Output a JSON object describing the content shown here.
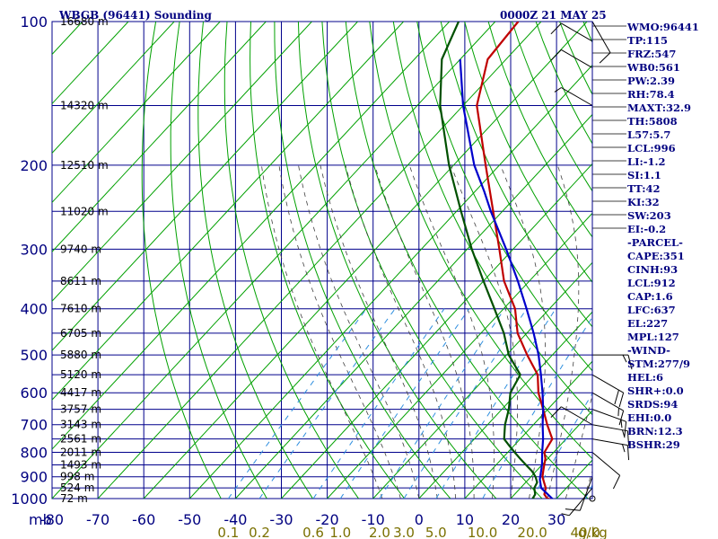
{
  "station_title": "WBGB (96441) Sounding",
  "time_title": "0000Z 21 MAY 25",
  "pressure_unit": "mb",
  "mixing_unit": "g/kg",
  "colors": {
    "grid": "#00008b",
    "dry_adiabat": "#00a000",
    "moist_adiabat": "#404040",
    "mixing_ratio": "#2f8fdf",
    "temperature": "#c00000",
    "dewpoint": "#005000",
    "parcel": "#0000cc"
  },
  "indices": [
    "WMO:96441",
    "TP:115",
    "FRZ:547",
    "WB0:561",
    "PW:2.39",
    "RH:78.4",
    "MAXT:32.9",
    "TH:5808",
    "L57:5.7",
    "LCL:996",
    "LI:-1.2",
    "SI:1.1",
    "TT:42",
    "KI:32",
    "SW:203",
    "EI:-0.2",
    "-PARCEL-",
    "CAPE:351",
    "CINH:93",
    "LCL:912",
    "CAP:1.6",
    "LFC:637",
    "EL:227",
    "MPL:127",
    "-WIND-",
    "STM:277/9",
    "HEL:6",
    "SHR+:0.0",
    "SRDS:94",
    "EHI:0.0",
    "BRN:12.3",
    "BSHR:29"
  ],
  "chart_data": {
    "type": "skew-t log-p",
    "title": "WBGB (96441) Sounding",
    "valid_time": "0000Z 21 MAY 25",
    "xlabel": "°C",
    "ylabel": "mb",
    "ylim": [
      1000,
      100
    ],
    "xlim": [
      -80,
      30
    ],
    "grid": true,
    "pressure_ticks": [
      100,
      200,
      300,
      400,
      500,
      600,
      700,
      800,
      900,
      1000
    ],
    "temperature_ticks": [
      -80,
      -70,
      -60,
      -50,
      -40,
      -30,
      -20,
      -10,
      0,
      10,
      20,
      30
    ],
    "mixing_ratio_ticks": [
      "0.1",
      "0.2",
      "0.6",
      "1.0",
      "2.0",
      "3.0",
      "5.0",
      "10.0",
      "20.0",
      "40.0"
    ],
    "mixing_ratio_values": [
      0.1,
      0.2,
      0.6,
      1.0,
      2.0,
      3.0,
      5.0,
      10.0,
      20.0,
      40.0
    ],
    "height_labels": [
      {
        "p": 100,
        "label": "16680 m"
      },
      {
        "p": 150,
        "label": "14320 m"
      },
      {
        "p": 200,
        "label": "12510 m"
      },
      {
        "p": 250,
        "label": "11020 m"
      },
      {
        "p": 300,
        "label": "9740 m"
      },
      {
        "p": 350,
        "label": "8611 m"
      },
      {
        "p": 400,
        "label": "7610 m"
      },
      {
        "p": 450,
        "label": "6705 m"
      },
      {
        "p": 500,
        "label": "5880 m"
      },
      {
        "p": 550,
        "label": "5120 m"
      },
      {
        "p": 600,
        "label": "4417 m"
      },
      {
        "p": 650,
        "label": "3757 m"
      },
      {
        "p": 700,
        "label": "3143 m"
      },
      {
        "p": 750,
        "label": "2561 m"
      },
      {
        "p": 800,
        "label": "2011 m"
      },
      {
        "p": 850,
        "label": "1493 m"
      },
      {
        "p": 900,
        "label": "998 m"
      },
      {
        "p": 950,
        "label": "524 m"
      },
      {
        "p": 1000,
        "label": "72 m"
      }
    ],
    "series": [
      {
        "key": "temperature",
        "p": [
          1005,
          1000,
          980,
          950,
          925,
          900,
          875,
          850,
          825,
          800,
          775,
          750,
          700,
          650,
          600,
          550,
          500,
          450,
          400,
          350,
          300,
          250,
          200,
          150,
          120,
          100
        ],
        "t": [
          29.4,
          28.0,
          26.5,
          25.5,
          24.0,
          22.5,
          21.5,
          20.5,
          19.5,
          18.0,
          17.5,
          17.0,
          13.0,
          9.0,
          4.6,
          0.8,
          -5.5,
          -12.0,
          -17.5,
          -25.5,
          -33.0,
          -42.0,
          -53.0,
          -67.0,
          -74.0,
          -75.0
        ]
      },
      {
        "key": "dewpoint",
        "p": [
          1005,
          1000,
          980,
          950,
          925,
          900,
          875,
          850,
          825,
          800,
          775,
          750,
          700,
          650,
          600,
          550,
          500,
          450,
          400,
          350,
          300,
          250,
          200,
          150,
          120,
          100
        ],
        "t": [
          26.0,
          24.8,
          24.5,
          23.0,
          22.5,
          21.0,
          19.0,
          16.5,
          14.0,
          11.5,
          9.0,
          6.5,
          3.8,
          1.5,
          -1.5,
          -3.0,
          -9.5,
          -15.0,
          -22.0,
          -30.0,
          -39.0,
          -49.0,
          -61.0,
          -75.0,
          -84.0,
          -88.0
        ]
      },
      {
        "key": "parcel",
        "p": [
          1005,
          950,
          912,
          850,
          800,
          750,
          700,
          650,
          600,
          550,
          500,
          450,
          400,
          350,
          300,
          250,
          227,
          200,
          150,
          120
        ],
        "t": [
          29.5,
          24.5,
          22.5,
          20.0,
          17.5,
          15.0,
          12.0,
          9.0,
          5.5,
          1.5,
          -3.0,
          -8.5,
          -15.0,
          -22.5,
          -31.5,
          -42.5,
          -48.0,
          -55.5,
          -70.0,
          -80.0
        ]
      }
    ],
    "winds_left": [
      {
        "p": 1000,
        "dir": 0,
        "spd": 0
      },
      {
        "p": 950,
        "dir": 220,
        "spd": 5
      },
      {
        "p": 900,
        "dir": 200,
        "spd": 10
      },
      {
        "p": 800,
        "dir": 130,
        "spd": 10
      },
      {
        "p": 750,
        "dir": 100,
        "spd": 15
      },
      {
        "p": 700,
        "dir": 100,
        "spd": 15
      },
      {
        "p": 650,
        "dir": 110,
        "spd": 15
      },
      {
        "p": 600,
        "dir": 120,
        "spd": 15
      },
      {
        "p": 550,
        "dir": 120,
        "spd": 20
      },
      {
        "p": 500,
        "dir": 90,
        "spd": 15
      },
      {
        "p": 100,
        "dir": 150,
        "spd": 10
      }
    ],
    "winds_right": [
      {
        "p": 700,
        "dir": 300,
        "spd": 10
      },
      {
        "p": 150,
        "dir": 300,
        "spd": 5
      },
      {
        "p": 125,
        "dir": 300,
        "spd": 10
      },
      {
        "p": 110,
        "dir": 300,
        "spd": 10
      }
    ]
  }
}
